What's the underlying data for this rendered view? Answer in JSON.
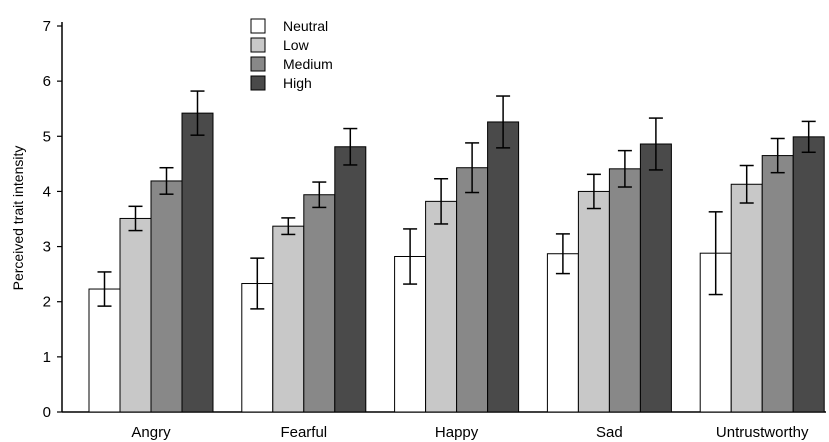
{
  "chart_data": {
    "type": "bar",
    "title": "",
    "xlabel": "",
    "ylabel": "Perceived trait intensity",
    "ylim": [
      0,
      7
    ],
    "yticks": [
      0,
      1,
      2,
      3,
      4,
      5,
      6,
      7
    ],
    "grid": false,
    "legend_position": "top-left",
    "categories": [
      "Angry",
      "Fearful",
      "Happy",
      "Sad",
      "Untrustworthy"
    ],
    "series": [
      {
        "name": "Neutral",
        "color": "#ffffff",
        "values": [
          2.23,
          2.33,
          2.82,
          2.87,
          2.88
        ],
        "errors": [
          0.31,
          0.46,
          0.5,
          0.36,
          0.75
        ]
      },
      {
        "name": "Low",
        "color": "#c8c8c8",
        "values": [
          3.51,
          3.37,
          3.82,
          4.0,
          4.13
        ],
        "errors": [
          0.22,
          0.15,
          0.41,
          0.31,
          0.34
        ]
      },
      {
        "name": "Medium",
        "color": "#888888",
        "values": [
          4.19,
          3.94,
          4.43,
          4.41,
          4.65
        ],
        "errors": [
          0.24,
          0.23,
          0.45,
          0.33,
          0.31
        ]
      },
      {
        "name": "High",
        "color": "#4a4a4a",
        "values": [
          5.42,
          4.81,
          5.26,
          4.86,
          4.99
        ],
        "errors": [
          0.4,
          0.33,
          0.47,
          0.47,
          0.28
        ]
      }
    ]
  }
}
